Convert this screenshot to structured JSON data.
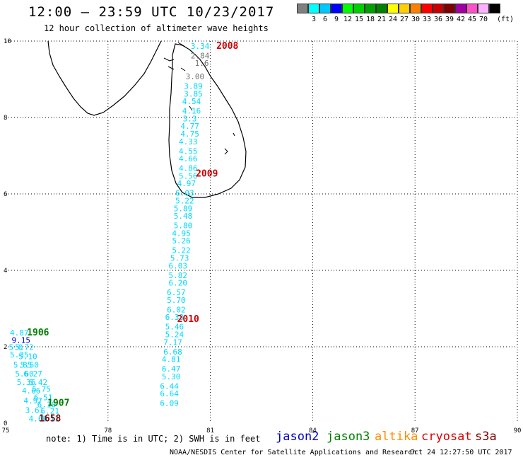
{
  "header": {
    "title": "12:00 – 23:59 UTC 10/23/2017",
    "subtitle": "12 hour collection of altimeter wave heights"
  },
  "legend": {
    "unit": "(ft)",
    "bins": [
      {
        "label": "",
        "color": "#808080"
      },
      {
        "label": "3",
        "color": "#00ffff"
      },
      {
        "label": "6",
        "color": "#00c8ff"
      },
      {
        "label": "9",
        "color": "#0000ff"
      },
      {
        "label": "12",
        "color": "#00ff00"
      },
      {
        "label": "15",
        "color": "#00d000"
      },
      {
        "label": "18",
        "color": "#00a000"
      },
      {
        "label": "21",
        "color": "#008000"
      },
      {
        "label": "24",
        "color": "#ffff00"
      },
      {
        "label": "27",
        "color": "#ffd000"
      },
      {
        "label": "30",
        "color": "#ff8000"
      },
      {
        "label": "33",
        "color": "#ff0000"
      },
      {
        "label": "36",
        "color": "#c80000"
      },
      {
        "label": "39",
        "color": "#800000"
      },
      {
        "label": "42",
        "color": "#a000a0"
      },
      {
        "label": "45",
        "color": "#ff50c8"
      },
      {
        "label": "70",
        "color": "#ffb0ff"
      },
      {
        "label": "",
        "color": "#000000"
      }
    ]
  },
  "axes": {
    "lon_ticks": [
      75,
      78,
      81,
      84,
      87,
      90
    ],
    "lat_ticks": [
      0,
      2,
      4,
      6,
      8,
      10
    ],
    "lon_range": [
      75,
      90
    ],
    "lat_range": [
      0,
      10
    ]
  },
  "pass_times": [
    {
      "text": "2008",
      "lon": 81.5,
      "lat": 9.8,
      "color": "#cc0000"
    },
    {
      "text": "2009",
      "lon": 80.9,
      "lat": 6.45,
      "color": "#cc0000"
    },
    {
      "text": "2010",
      "lon": 80.35,
      "lat": 2.65,
      "color": "#cc0000"
    },
    {
      "text": "1906",
      "lon": 75.95,
      "lat": 2.3,
      "color": "#008000"
    },
    {
      "text": "1907",
      "lon": 76.55,
      "lat": 0.45,
      "color": "#008000"
    },
    {
      "text": "1658",
      "lon": 76.3,
      "lat": 0.05,
      "color": "#800000"
    }
  ],
  "observations": [
    {
      "text": "3.34",
      "lon": 80.7,
      "lat": 9.8,
      "color": "#00d8ff"
    },
    {
      "text": "2.84",
      "lon": 80.7,
      "lat": 9.55,
      "color": "#707070"
    },
    {
      "text": "1.6",
      "lon": 80.75,
      "lat": 9.35,
      "color": "#707070"
    },
    {
      "text": "3.00",
      "lon": 80.55,
      "lat": 9.0,
      "color": "#707070"
    },
    {
      "text": "3.89",
      "lon": 80.5,
      "lat": 8.75,
      "color": "#00d8ff"
    },
    {
      "text": "3.85",
      "lon": 80.5,
      "lat": 8.55,
      "color": "#00d8ff"
    },
    {
      "text": "4.54",
      "lon": 80.45,
      "lat": 8.35,
      "color": "#00d8ff"
    },
    {
      "text": "4.16",
      "lon": 80.45,
      "lat": 8.1,
      "color": "#00d8ff"
    },
    {
      "text": "3.3",
      "lon": 80.4,
      "lat": 7.9,
      "color": "#00d8ff"
    },
    {
      "text": "4.77",
      "lon": 80.4,
      "lat": 7.7,
      "color": "#00d8ff"
    },
    {
      "text": "4.75",
      "lon": 80.4,
      "lat": 7.5,
      "color": "#00d8ff"
    },
    {
      "text": "4.33",
      "lon": 80.35,
      "lat": 7.3,
      "color": "#00d8ff"
    },
    {
      "text": "4.55",
      "lon": 80.35,
      "lat": 7.05,
      "color": "#00d8ff"
    },
    {
      "text": "4.66",
      "lon": 80.35,
      "lat": 6.85,
      "color": "#00d8ff"
    },
    {
      "text": "4.86",
      "lon": 80.35,
      "lat": 6.6,
      "color": "#00d8ff"
    },
    {
      "text": "5.56",
      "lon": 80.35,
      "lat": 6.4,
      "color": "#00d8ff"
    },
    {
      "text": "4.97",
      "lon": 80.3,
      "lat": 6.2,
      "color": "#00d8ff"
    },
    {
      "text": "6.03",
      "lon": 80.25,
      "lat": 5.95,
      "color": "#00d8ff"
    },
    {
      "text": "5.22",
      "lon": 80.25,
      "lat": 5.75,
      "color": "#00d8ff"
    },
    {
      "text": "5.89",
      "lon": 80.2,
      "lat": 5.55,
      "color": "#00d8ff"
    },
    {
      "text": "5.48",
      "lon": 80.2,
      "lat": 5.35,
      "color": "#00d8ff"
    },
    {
      "text": "5.80",
      "lon": 80.2,
      "lat": 5.1,
      "color": "#00d8ff"
    },
    {
      "text": "4.95",
      "lon": 80.15,
      "lat": 4.9,
      "color": "#00d8ff"
    },
    {
      "text": "5.26",
      "lon": 80.15,
      "lat": 4.7,
      "color": "#00d8ff"
    },
    {
      "text": "5.22",
      "lon": 80.15,
      "lat": 4.45,
      "color": "#00d8ff"
    },
    {
      "text": "5.73",
      "lon": 80.1,
      "lat": 4.25,
      "color": "#00d8ff"
    },
    {
      "text": "6.03",
      "lon": 80.05,
      "lat": 4.05,
      "color": "#00d8ff"
    },
    {
      "text": "5.82",
      "lon": 80.05,
      "lat": 3.8,
      "color": "#00d8ff"
    },
    {
      "text": "6.20",
      "lon": 80.05,
      "lat": 3.6,
      "color": "#00d8ff"
    },
    {
      "text": "6.57",
      "lon": 80.0,
      "lat": 3.35,
      "color": "#00d8ff"
    },
    {
      "text": "5.70",
      "lon": 80.0,
      "lat": 3.15,
      "color": "#00d8ff"
    },
    {
      "text": "6.02",
      "lon": 80.0,
      "lat": 2.9,
      "color": "#00d8ff"
    },
    {
      "text": "6.33",
      "lon": 79.95,
      "lat": 2.7,
      "color": "#00d8ff"
    },
    {
      "text": "5.46",
      "lon": 79.95,
      "lat": 2.45,
      "color": "#00d8ff"
    },
    {
      "text": "5.24",
      "lon": 79.95,
      "lat": 2.25,
      "color": "#00d8ff"
    },
    {
      "text": "7.17",
      "lon": 79.9,
      "lat": 2.05,
      "color": "#00d8ff"
    },
    {
      "text": "6.68",
      "lon": 79.9,
      "lat": 1.8,
      "color": "#00d8ff"
    },
    {
      "text": "4.81",
      "lon": 79.85,
      "lat": 1.6,
      "color": "#00d8ff"
    },
    {
      "text": "6.47",
      "lon": 79.85,
      "lat": 1.35,
      "color": "#00d8ff"
    },
    {
      "text": "5.30",
      "lon": 79.85,
      "lat": 1.15,
      "color": "#00d8ff"
    },
    {
      "text": "6.44",
      "lon": 79.8,
      "lat": 0.9,
      "color": "#00d8ff"
    },
    {
      "text": "6.64",
      "lon": 79.8,
      "lat": 0.7,
      "color": "#00d8ff"
    },
    {
      "text": "6.09",
      "lon": 79.8,
      "lat": 0.45,
      "color": "#00d8ff"
    },
    {
      "text": "4.87",
      "lon": 75.4,
      "lat": 2.3,
      "color": "#00d8ff"
    },
    {
      "text": "9.15",
      "lon": 75.45,
      "lat": 2.1,
      "color": "#0000e0"
    },
    {
      "text": "5.0",
      "lon": 75.3,
      "lat": 1.92,
      "color": "#00d8ff"
    },
    {
      "text": "5.72",
      "lon": 75.55,
      "lat": 1.92,
      "color": "#00d8ff"
    },
    {
      "text": "5.35",
      "lon": 75.4,
      "lat": 1.72,
      "color": "#00d8ff"
    },
    {
      "text": "5.10",
      "lon": 75.65,
      "lat": 1.68,
      "color": "#00d8ff"
    },
    {
      "text": "5.85",
      "lon": 75.5,
      "lat": 1.45,
      "color": "#00d8ff"
    },
    {
      "text": "5.50",
      "lon": 75.7,
      "lat": 1.45,
      "color": "#00d8ff"
    },
    {
      "text": "5.60",
      "lon": 75.55,
      "lat": 1.22,
      "color": "#00d8ff"
    },
    {
      "text": "6.27",
      "lon": 75.8,
      "lat": 1.22,
      "color": "#00d8ff"
    },
    {
      "text": "5.36",
      "lon": 75.6,
      "lat": 1.0,
      "color": "#00d8ff"
    },
    {
      "text": "6.42",
      "lon": 75.95,
      "lat": 1.0,
      "color": "#00d8ff"
    },
    {
      "text": "4.66",
      "lon": 75.75,
      "lat": 0.78,
      "color": "#00d8ff"
    },
    {
      "text": "5.75",
      "lon": 76.05,
      "lat": 0.82,
      "color": "#00d8ff"
    },
    {
      "text": "6.51",
      "lon": 76.1,
      "lat": 0.6,
      "color": "#00d8ff"
    },
    {
      "text": "4.97",
      "lon": 75.8,
      "lat": 0.52,
      "color": "#00d8ff"
    },
    {
      "text": "6.10",
      "lon": 76.2,
      "lat": 0.42,
      "color": "#00d8ff"
    },
    {
      "text": "3.61",
      "lon": 75.85,
      "lat": 0.27,
      "color": "#00d8ff"
    },
    {
      "text": "6.21",
      "lon": 76.3,
      "lat": 0.25,
      "color": "#00d8ff"
    },
    {
      "text": "4.66",
      "lon": 75.95,
      "lat": 0.05,
      "color": "#00d8ff"
    },
    {
      "text": "6.11",
      "lon": 76.3,
      "lat": 0.05,
      "color": "#00d8ff"
    }
  ],
  "footer": {
    "note": "note: 1) Time is in UTC; 2) SWH is in feet",
    "satellites": [
      {
        "name": "jason2",
        "color": "#0000cc"
      },
      {
        "name": "jason3",
        "color": "#008000"
      },
      {
        "name": "altika",
        "color": "#ff8c00"
      },
      {
        "name": "cryosat",
        "color": "#dd0000"
      },
      {
        "name": "s3a",
        "color": "#800000"
      }
    ],
    "credit": "NOAA/NESDIS Center for Satellite Applications and Research",
    "timestamp": "Oct 24 12:27:50 UTC 2017"
  }
}
